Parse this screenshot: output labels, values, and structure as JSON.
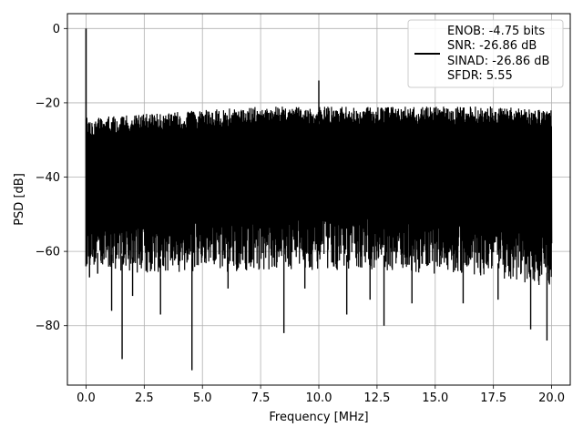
{
  "chart_data": {
    "type": "line",
    "title": "",
    "xlabel": "Frequency [MHz]",
    "ylabel": "PSD [dB]",
    "xlim": [
      -0.8,
      20.8
    ],
    "ylim": [
      -96,
      4
    ],
    "x_ticks": [
      0.0,
      2.5,
      5.0,
      7.5,
      10.0,
      12.5,
      15.0,
      17.5,
      20.0
    ],
    "x_tick_labels": [
      "0.0",
      "2.5",
      "5.0",
      "7.5",
      "10.0",
      "12.5",
      "15.0",
      "17.5",
      "20.0"
    ],
    "y_ticks": [
      0,
      -20,
      -40,
      -60,
      -80
    ],
    "y_tick_labels": [
      "0",
      "−20",
      "−40",
      "−60",
      "−80"
    ],
    "grid": true,
    "legend_position": "top-right",
    "series": [
      {
        "color": "#000000",
        "x_range": [
          0.0,
          20.0
        ],
        "peak_frequency": 0.0,
        "peak_value": 0.0,
        "spur_frequency": 10.0,
        "spur_value": -14,
        "noise_upper": [
          [
            0.0,
            -24
          ],
          [
            2.5,
            -23
          ],
          [
            5.0,
            -22
          ],
          [
            7.5,
            -21
          ],
          [
            10.0,
            -21
          ],
          [
            12.5,
            -21
          ],
          [
            15.0,
            -21
          ],
          [
            17.5,
            -21
          ],
          [
            20.0,
            -22
          ]
        ],
        "noise_lower": [
          [
            0.0,
            -64
          ],
          [
            2.5,
            -66
          ],
          [
            5.0,
            -66
          ],
          [
            7.5,
            -65
          ],
          [
            10.0,
            -65
          ],
          [
            12.5,
            -65
          ],
          [
            15.0,
            -66
          ],
          [
            17.5,
            -67
          ],
          [
            20.0,
            -70
          ]
        ],
        "deep_dips": [
          [
            0.15,
            -67
          ],
          [
            0.5,
            -66
          ],
          [
            1.1,
            -76
          ],
          [
            1.55,
            -89
          ],
          [
            2.0,
            -72
          ],
          [
            3.2,
            -77
          ],
          [
            4.55,
            -92
          ],
          [
            6.1,
            -70
          ],
          [
            8.5,
            -82
          ],
          [
            9.4,
            -70
          ],
          [
            11.2,
            -77
          ],
          [
            12.2,
            -73
          ],
          [
            12.8,
            -80
          ],
          [
            14.0,
            -74
          ],
          [
            16.2,
            -74
          ],
          [
            17.7,
            -73
          ],
          [
            19.1,
            -81
          ],
          [
            19.8,
            -84
          ]
        ]
      }
    ],
    "legend": {
      "entries": [
        "ENOB: -4.75 bits",
        "SNR: -26.86 dB",
        "SINAD: -26.86 dB",
        "SFDR: 5.55"
      ]
    }
  }
}
